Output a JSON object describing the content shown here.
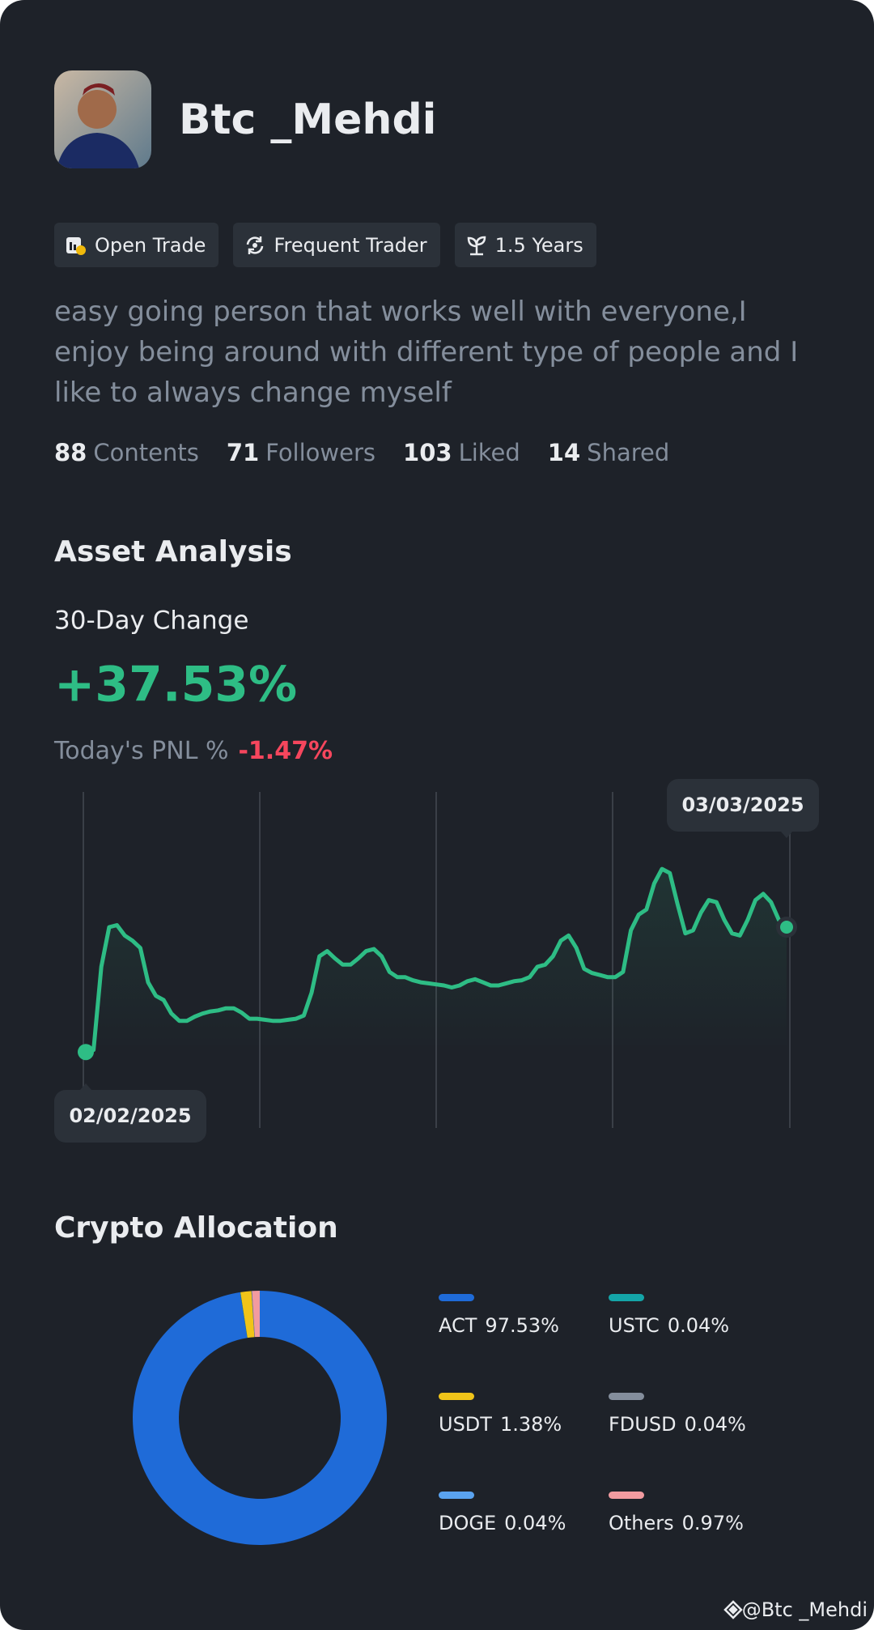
{
  "profile": {
    "name": "Btc _Mehdi",
    "tags": [
      "Open Trade",
      "Frequent Trader",
      "1.5 Years"
    ],
    "bio": "easy going person that works well with everyone,I enjoy being around with different type of people and I like to always change myself",
    "stats": [
      {
        "value": 88,
        "label": "Contents"
      },
      {
        "value": 71,
        "label": "Followers"
      },
      {
        "value": 103,
        "label": "Liked"
      },
      {
        "value": 14,
        "label": "Shared"
      }
    ]
  },
  "asset_analysis": {
    "title": "Asset Analysis",
    "change_label": "30-Day Change",
    "change_value": "+37.53%",
    "pnl_label": "Today's PNL %",
    "pnl_value": "-1.47%",
    "chart": {
      "type": "line",
      "color": "#2ebd85",
      "ylim": [
        0,
        323
      ],
      "start_label": "02/02/2025",
      "end_label": "03/03/2025",
      "values": [
        73,
        75,
        155,
        193,
        195,
        185,
        180,
        173,
        140,
        127,
        123,
        110,
        103,
        103,
        107,
        110,
        112,
        113,
        115,
        115,
        111,
        105,
        105,
        104,
        103,
        103,
        104,
        105,
        108,
        130,
        165,
        170,
        163,
        157,
        157,
        163,
        170,
        172,
        165,
        150,
        145,
        145,
        142,
        140,
        139,
        138,
        137,
        135,
        137,
        141,
        143,
        140,
        137,
        137,
        139,
        141,
        142,
        145,
        155,
        157,
        165,
        180,
        185,
        173,
        153,
        149,
        147,
        145,
        145,
        150,
        190,
        205,
        210,
        235,
        249,
        245,
        215,
        187,
        190,
        207,
        219,
        217,
        200,
        187,
        185,
        200,
        219,
        225,
        217,
        200,
        193
      ]
    }
  },
  "crypto_allocation": {
    "title": "Crypto Allocation",
    "type": "pie",
    "categories": [
      "ACT",
      "USTC",
      "USDT",
      "FDUSD",
      "DOGE",
      "Others"
    ],
    "values": [
      97.53,
      0.04,
      1.38,
      0.04,
      0.04,
      0.97
    ],
    "value_labels": [
      "97.53%",
      "0.04%",
      "1.38%",
      "0.04%",
      "0.04%",
      "0.97%"
    ],
    "colors": [
      "#1f6bd8",
      "#14a5a8",
      "#f0c419",
      "#848e9c",
      "#5aa3f0",
      "#f29ba0"
    ]
  },
  "watermark": "@Btc _Mehdi"
}
